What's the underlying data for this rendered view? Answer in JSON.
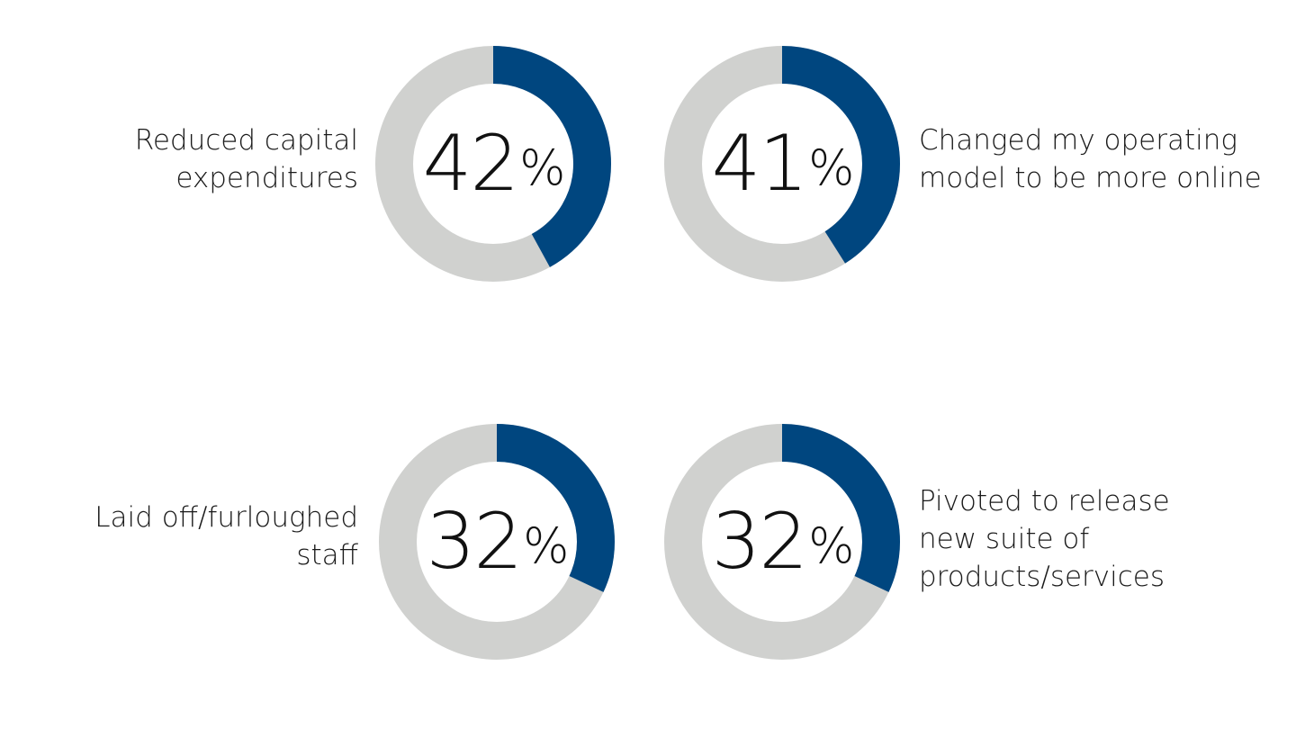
{
  "chart_data": [
    {
      "type": "pie",
      "value": 42,
      "percent_text": "42",
      "percent_symbol": "%",
      "label_lines": [
        "Reduced capital",
        "expenditures"
      ],
      "colors": {
        "fill": "#00467f",
        "track": "#d0d1cf"
      }
    },
    {
      "type": "pie",
      "value": 41,
      "percent_text": "41",
      "percent_symbol": "%",
      "label_lines": [
        "Changed my operating",
        "model to be more online"
      ],
      "colors": {
        "fill": "#00467f",
        "track": "#d0d1cf"
      }
    },
    {
      "type": "pie",
      "value": 32,
      "percent_text": "32",
      "percent_symbol": "%",
      "label_lines": [
        "Laid off/furloughed",
        "staff"
      ],
      "colors": {
        "fill": "#00467f",
        "track": "#d0d1cf"
      }
    },
    {
      "type": "pie",
      "value": 32,
      "percent_text": "32",
      "percent_symbol": "%",
      "label_lines": [
        "Pivoted to release",
        "new suite of",
        "products/services"
      ],
      "colors": {
        "fill": "#00467f",
        "track": "#d0d1cf"
      }
    }
  ]
}
